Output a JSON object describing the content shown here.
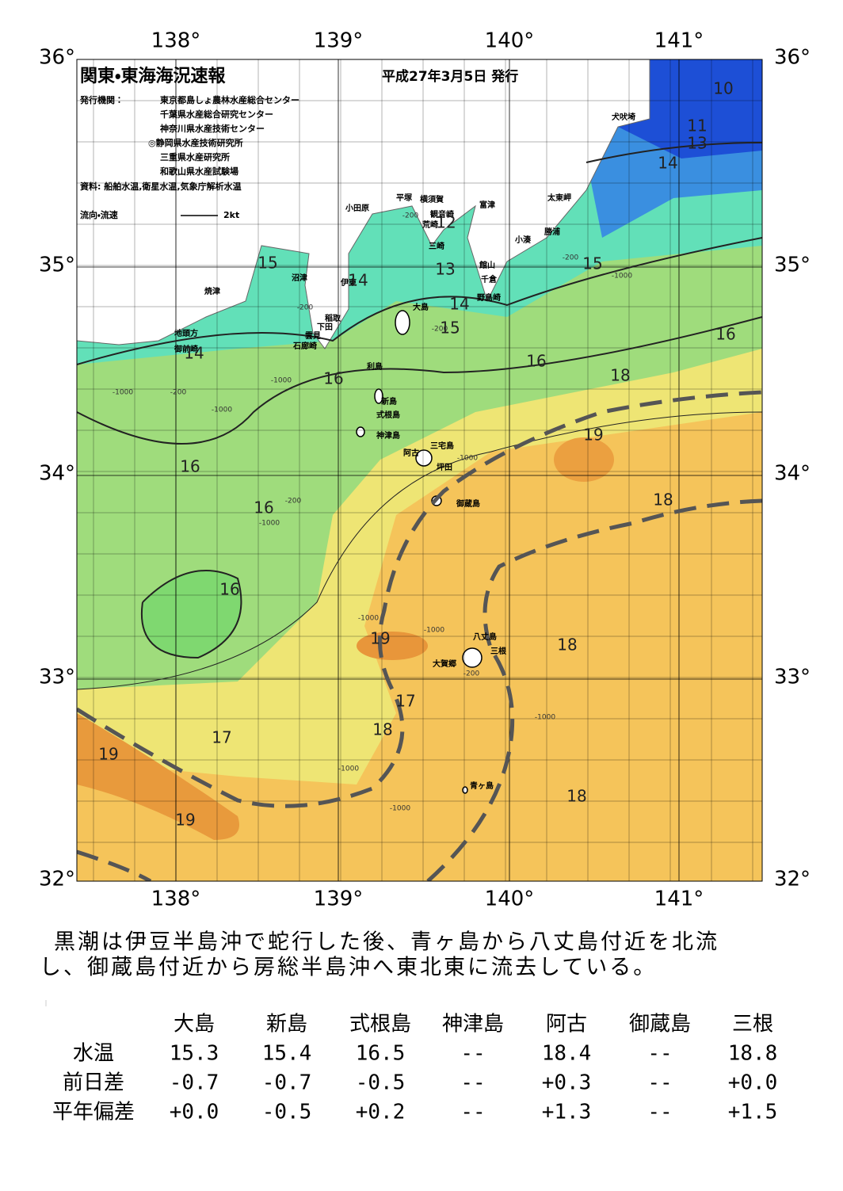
{
  "map": {
    "title": "関東・東海海況速報",
    "issued": "平成27年3月5日 発行",
    "publisher_label": "発行機関：",
    "publishers": [
      "東京都島しょ農林水産総合センター",
      "千葉県水産総合研究センター",
      "神奈川県水産技術センター",
      "◎静岡県水産技術研究所",
      "三重県水産研究所",
      "和歌山県水産試験場"
    ],
    "source": "資料: 船舶水温,衛星水温,気象庁解析水温",
    "legend_label": "流向・流速",
    "legend_speed": "2kt",
    "lon_labels": [
      "138°",
      "139°",
      "140°",
      "141°"
    ],
    "lat_labels": [
      "36°",
      "35°",
      "34°",
      "33°",
      "32°"
    ],
    "places": [
      "犬吠埼",
      "太東岬",
      "勝浦",
      "小湊",
      "富津",
      "横須賀",
      "観音崎",
      "荒崎",
      "平塚",
      "小田原",
      "三崎",
      "館山",
      "千倉",
      "野島崎",
      "沼津",
      "伊東",
      "焼津",
      "大島",
      "稲取",
      "下田",
      "雲見",
      "石廊崎",
      "地頭方",
      "御前崎",
      "利島",
      "新島",
      "式根島",
      "神津島",
      "三宅島",
      "阿古",
      "坪田",
      "御蔵島",
      "八丈島",
      "三根",
      "大賀郷",
      "青ヶ島"
    ],
    "temperature_labels": [
      10,
      11,
      13,
      14,
      12,
      15,
      14,
      13,
      14,
      15,
      15,
      16,
      14,
      16,
      16,
      18,
      19,
      16,
      16,
      18,
      16,
      19,
      18,
      17,
      18,
      17,
      19,
      18,
      19
    ],
    "depth_labels": [
      "-200",
      "-200",
      "-1000",
      "-200",
      "-1000",
      "-200",
      "-1000",
      "-1000",
      "-200",
      "-1000",
      "-200",
      "-1000",
      "-1000",
      "-1000",
      "-200",
      "-1000",
      "-1000",
      "-1000"
    ]
  },
  "summary": [
    "黒潮は伊豆半島沖で蛇行した後、青ヶ島から八丈島付近を北流",
    "し、御蔵島付近から房総半島沖へ東北東に流去している。"
  ],
  "table": {
    "header": [
      "大島",
      "新島",
      "式根島",
      "神津島",
      "阿古",
      "御蔵島",
      "三根"
    ],
    "rows": [
      [
        "水温",
        "15.3",
        "15.4",
        "16.5",
        "--",
        "18.4",
        "--",
        "18.8"
      ],
      [
        "前日差",
        "-0.7",
        "-0.7",
        "-0.5",
        "--",
        "+0.3",
        "--",
        "+0.0"
      ],
      [
        "平年偏差",
        "+0.0",
        "-0.5",
        "+0.2",
        "--",
        "+1.3",
        "--",
        "+1.5"
      ]
    ]
  }
}
